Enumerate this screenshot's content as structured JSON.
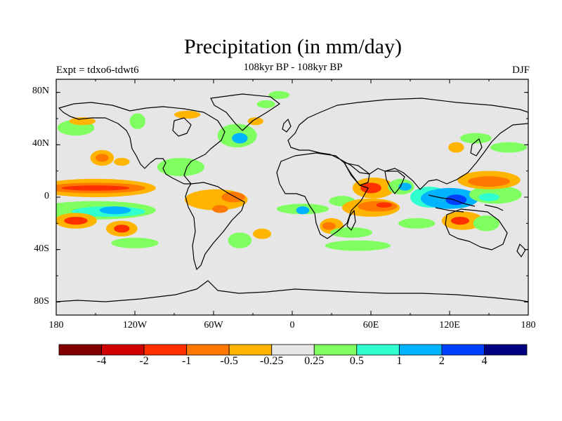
{
  "title": "Precipitation (in mm/day)",
  "subtitle": "108kyr BP - 108kyr BP",
  "left_label": "Expt = tdxo6-tdwt6",
  "right_label": "DJF",
  "axes": {
    "lat_ticks": [
      "80N",
      "40N",
      "0",
      "40S",
      "80S"
    ],
    "lon_ticks": [
      "180",
      "120W",
      "60W",
      "0",
      "60E",
      "120E",
      "180"
    ]
  },
  "colorbar": {
    "colors": [
      "#800000",
      "#d00000",
      "#ff3000",
      "#ff7800",
      "#ffb400",
      "#e6e6e6",
      "#80ff60",
      "#30ffd0",
      "#00b4ff",
      "#0040ff",
      "#000080"
    ],
    "labels": [
      "-4",
      "-2",
      "-1",
      "-0.5",
      "-0.25",
      "0.25",
      "0.5",
      "1",
      "2",
      "4"
    ]
  },
  "map": {
    "background": "#e6e6e6",
    "anomaly_patches": [
      {
        "color": "#80ff60",
        "lon": -165,
        "lat": 53,
        "rx": 14,
        "ry": 6
      },
      {
        "color": "#ffb400",
        "lon": -160,
        "lat": 58,
        "rx": 10,
        "ry": 3
      },
      {
        "color": "#80ff60",
        "lon": -118,
        "lat": 58,
        "rx": 6,
        "ry": 6
      },
      {
        "color": "#ffb400",
        "lon": -145,
        "lat": 30,
        "rx": 9,
        "ry": 6
      },
      {
        "color": "#ff7800",
        "lon": -145,
        "lat": 30,
        "rx": 5,
        "ry": 3
      },
      {
        "color": "#80ff60",
        "lon": -85,
        "lat": 23,
        "rx": 18,
        "ry": 7
      },
      {
        "color": "#ffb400",
        "lon": -130,
        "lat": 27,
        "rx": 6,
        "ry": 3
      },
      {
        "color": "#80ff60",
        "lon": -42,
        "lat": 47,
        "rx": 15,
        "ry": 9
      },
      {
        "color": "#00b4ff",
        "lon": -40,
        "lat": 45,
        "rx": 6,
        "ry": 4
      },
      {
        "color": "#ffb400",
        "lon": -28,
        "lat": 58,
        "rx": 6,
        "ry": 3
      },
      {
        "color": "#80ff60",
        "lon": -20,
        "lat": 71,
        "rx": 7,
        "ry": 3
      },
      {
        "color": "#ffb400",
        "lon": -80,
        "lat": 63,
        "rx": 10,
        "ry": 3
      },
      {
        "color": "#ffb400",
        "lon": -150,
        "lat": 7,
        "rx": 46,
        "ry": 7
      },
      {
        "color": "#ff7800",
        "lon": -150,
        "lat": 7,
        "rx": 38,
        "ry": 4
      },
      {
        "color": "#ff3000",
        "lon": -150,
        "lat": 7,
        "rx": 26,
        "ry": 2
      },
      {
        "color": "#80ff60",
        "lon": -150,
        "lat": -10,
        "rx": 46,
        "ry": 7
      },
      {
        "color": "#30ffd0",
        "lon": -140,
        "lat": -11,
        "rx": 28,
        "ry": 4
      },
      {
        "color": "#00b4ff",
        "lon": -135,
        "lat": -10,
        "rx": 12,
        "ry": 3
      },
      {
        "color": "#ffb400",
        "lon": -165,
        "lat": -18,
        "rx": 16,
        "ry": 6
      },
      {
        "color": "#ff3000",
        "lon": -165,
        "lat": -18,
        "rx": 9,
        "ry": 3
      },
      {
        "color": "#ffb400",
        "lon": -130,
        "lat": -24,
        "rx": 12,
        "ry": 6
      },
      {
        "color": "#ff3000",
        "lon": -130,
        "lat": -24,
        "rx": 6,
        "ry": 3
      },
      {
        "color": "#80ff60",
        "lon": -120,
        "lat": -35,
        "rx": 18,
        "ry": 4
      },
      {
        "color": "#ffb400",
        "lon": -58,
        "lat": -2,
        "rx": 24,
        "ry": 8
      },
      {
        "color": "#ff7800",
        "lon": -45,
        "lat": 0,
        "rx": 9,
        "ry": 4
      },
      {
        "color": "#ff7800",
        "lon": -55,
        "lat": -9,
        "rx": 6,
        "ry": 3
      },
      {
        "color": "#80ff60",
        "lon": -40,
        "lat": -33,
        "rx": 9,
        "ry": 6
      },
      {
        "color": "#ffb400",
        "lon": -23,
        "lat": -28,
        "rx": 7,
        "ry": 4
      },
      {
        "color": "#80ff60",
        "lon": 8,
        "lat": -9,
        "rx": 20,
        "ry": 4
      },
      {
        "color": "#00b4ff",
        "lon": 8,
        "lat": -10,
        "rx": 5,
        "ry": 3
      },
      {
        "color": "#ffb400",
        "lon": 30,
        "lat": -22,
        "rx": 9,
        "ry": 6
      },
      {
        "color": "#ff7800",
        "lon": 28,
        "lat": -22,
        "rx": 5,
        "ry": 3
      },
      {
        "color": "#80ff60",
        "lon": 45,
        "lat": -27,
        "rx": 16,
        "ry": 4
      },
      {
        "color": "#80ff60",
        "lon": 50,
        "lat": -37,
        "rx": 25,
        "ry": 4
      },
      {
        "color": "#80ff60",
        "lon": 38,
        "lat": -3,
        "rx": 10,
        "ry": 4
      },
      {
        "color": "#ffb400",
        "lon": 62,
        "lat": 7,
        "rx": 16,
        "ry": 8
      },
      {
        "color": "#ff3000",
        "lon": 60,
        "lat": 7,
        "rx": 8,
        "ry": 4
      },
      {
        "color": "#80ff60",
        "lon": 83,
        "lat": 8,
        "rx": 10,
        "ry": 6
      },
      {
        "color": "#00b4ff",
        "lon": 86,
        "lat": 8,
        "rx": 5,
        "ry": 3
      },
      {
        "color": "#ffb400",
        "lon": 60,
        "lat": -8,
        "rx": 22,
        "ry": 7
      },
      {
        "color": "#ff7800",
        "lon": 65,
        "lat": -7,
        "rx": 15,
        "ry": 4
      },
      {
        "color": "#ff3000",
        "lon": 70,
        "lat": -6,
        "rx": 6,
        "ry": 2
      },
      {
        "color": "#30ffd0",
        "lon": 105,
        "lat": 0,
        "rx": 15,
        "ry": 8
      },
      {
        "color": "#00b4ff",
        "lon": 120,
        "lat": -1,
        "rx": 22,
        "ry": 8
      },
      {
        "color": "#0040ff",
        "lon": 125,
        "lat": -2,
        "rx": 8,
        "ry": 4
      },
      {
        "color": "#80ff60",
        "lon": 155,
        "lat": 2,
        "rx": 20,
        "ry": 7
      },
      {
        "color": "#30ffd0",
        "lon": 150,
        "lat": 0,
        "rx": 8,
        "ry": 3
      },
      {
        "color": "#ffb400",
        "lon": 150,
        "lat": 13,
        "rx": 24,
        "ry": 7
      },
      {
        "color": "#ff7800",
        "lon": 150,
        "lat": 12,
        "rx": 16,
        "ry": 4
      },
      {
        "color": "#ffb400",
        "lon": 130,
        "lat": -18,
        "rx": 16,
        "ry": 7
      },
      {
        "color": "#ff3000",
        "lon": 128,
        "lat": -18,
        "rx": 7,
        "ry": 3
      },
      {
        "color": "#80ff60",
        "lon": 148,
        "lat": -20,
        "rx": 10,
        "ry": 6
      },
      {
        "color": "#80ff60",
        "lon": 95,
        "lat": -20,
        "rx": 14,
        "ry": 4
      },
      {
        "color": "#80ff60",
        "lon": 165,
        "lat": 38,
        "rx": 14,
        "ry": 4
      },
      {
        "color": "#80ff60",
        "lon": 140,
        "lat": 45,
        "rx": 12,
        "ry": 4
      },
      {
        "color": "#ffb400",
        "lon": 125,
        "lat": 38,
        "rx": 6,
        "ry": 4
      },
      {
        "color": "#80ff60",
        "lon": -10,
        "lat": 78,
        "rx": 8,
        "ry": 3
      }
    ]
  }
}
